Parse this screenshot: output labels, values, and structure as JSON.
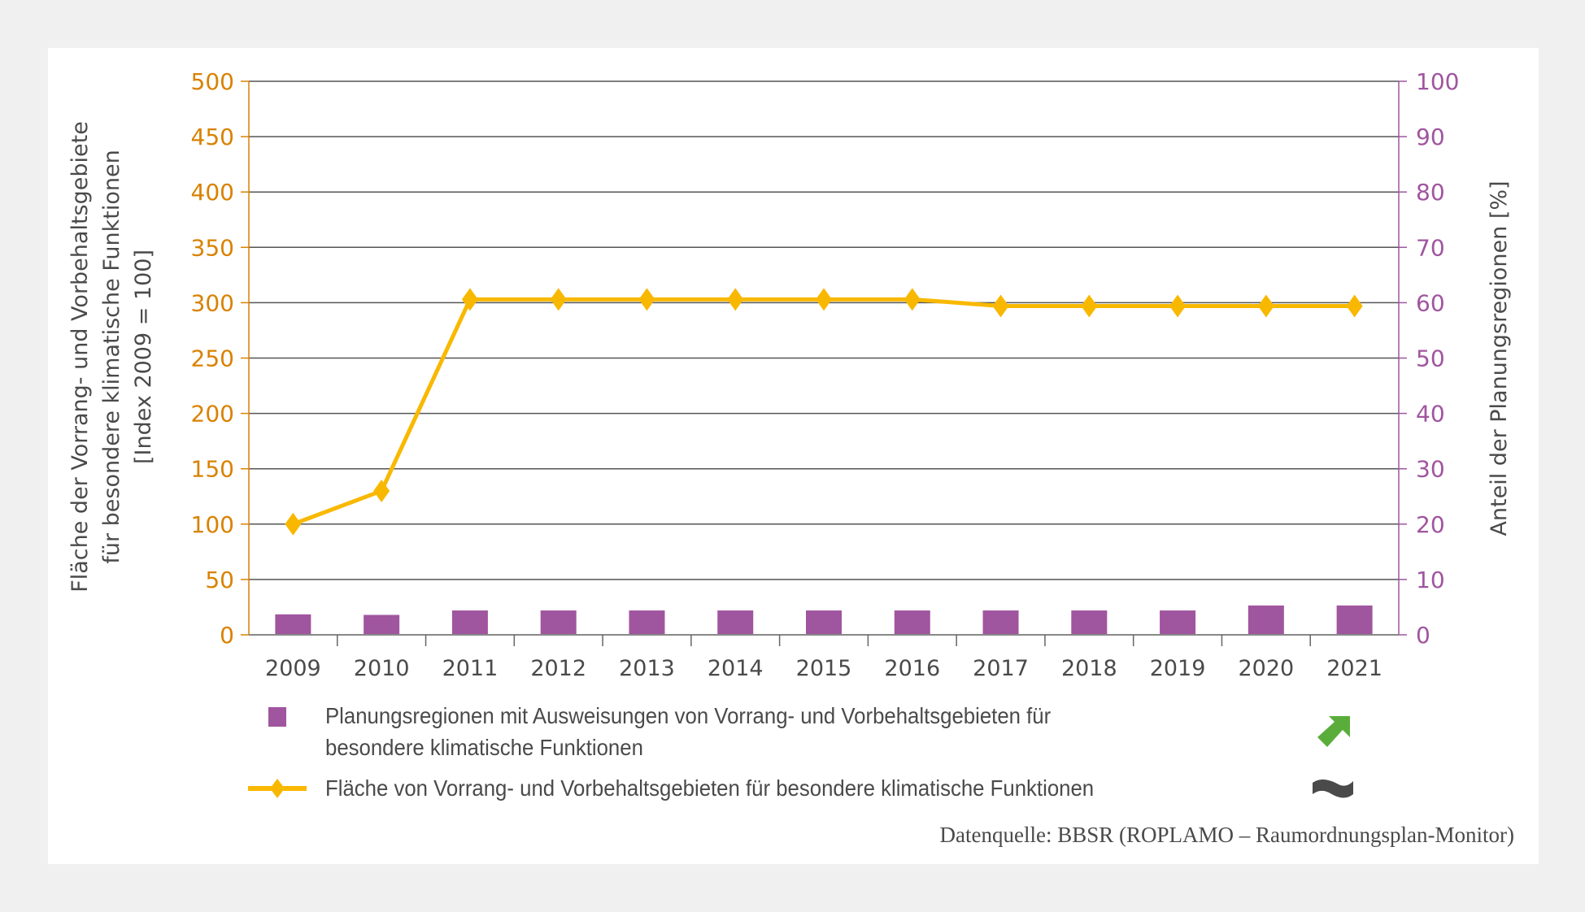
{
  "colors": {
    "line": "#f9b800",
    "bar": "#a0559f",
    "left_axis": "#d98200",
    "right_axis": "#a0559f",
    "grid": "#555555",
    "text": "#4a4a4a",
    "trend_up": "#5aad3a",
    "trend_flat": "#4a4a4a"
  },
  "chart_data": {
    "type": "bar+line",
    "categories": [
      "2009",
      "2010",
      "2011",
      "2012",
      "2013",
      "2014",
      "2015",
      "2016",
      "2017",
      "2018",
      "2019",
      "2020",
      "2021"
    ],
    "series": [
      {
        "name": "Planungsregionen mit Ausweisungen von Vorrang- und Vorbehaltsgebieten für besondere klimatische Funktionen",
        "type": "bar",
        "axis": "right",
        "values": [
          3.7,
          3.6,
          4.4,
          4.4,
          4.4,
          4.4,
          4.4,
          4.4,
          4.4,
          4.4,
          4.4,
          5.3,
          5.3
        ]
      },
      {
        "name": "Fläche von Vorrang- und Vorbehaltsgebieten für besondere klimatische Funktionen",
        "type": "line",
        "axis": "left",
        "values": [
          100,
          130,
          303,
          303,
          303,
          303,
          303,
          303,
          297,
          297,
          297,
          297,
          297
        ]
      }
    ],
    "left_axis": {
      "label_lines": [
        "Fläche der Vorrang- und Vorbehaltsgebiete",
        "für besondere klimatische Funktionen",
        "[Index 2009 = 100]"
      ],
      "ylim": [
        0,
        500
      ],
      "ticks": [
        "0",
        "50",
        "100",
        "150",
        "200",
        "250",
        "300",
        "350",
        "400",
        "450",
        "500"
      ]
    },
    "right_axis": {
      "label": "Anteil der Planungsregionen [%]",
      "ylim": [
        0,
        100
      ],
      "ticks": [
        "0",
        "10",
        "20",
        "30",
        "40",
        "50",
        "60",
        "70",
        "80",
        "90",
        "100"
      ]
    },
    "grid": true,
    "legend_position": "bottom"
  },
  "legend": {
    "bar_label_line1": "Planungsregionen mit Ausweisungen von Vorrang- und Vorbehaltsgebieten für",
    "bar_label_line2": "besondere klimatische Funktionen",
    "bar_trend_icon": "arrow-up-right-icon",
    "line_label": "Fläche von Vorrang- und Vorbehaltsgebieten für besondere klimatische Funktionen",
    "line_trend_icon": "tilde-icon"
  },
  "source": "Datenquelle: BBSR (ROPLAMO – Raumordnungsplan-Monitor)"
}
